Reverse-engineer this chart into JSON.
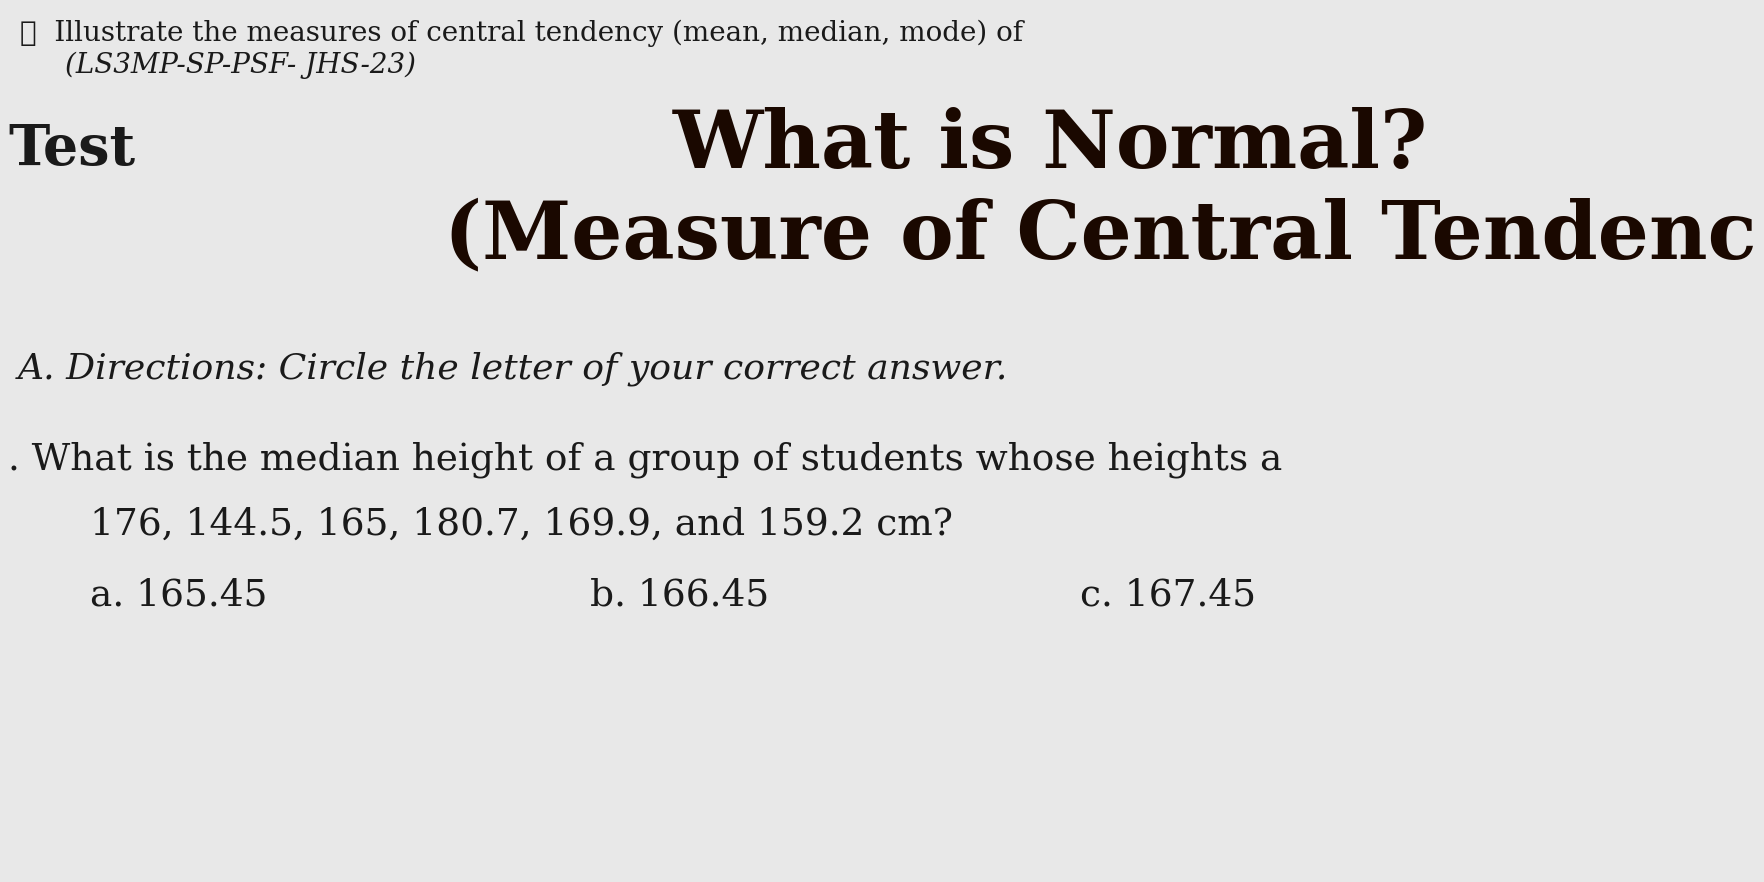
{
  "bg_color": "#e8e8e8",
  "text_color": "#1a1a1a",
  "title_color": "#1a0800",
  "bullet_line1": "❖  Illustrate the measures of central tendency (mean, median, mode) of",
  "bullet_line2": "(LS3MP-SP-PSF- JHS-23)",
  "test_label": "Test",
  "title1": "What is Normal?",
  "title2": "(Measure of Central Tendenc",
  "directions": "A. Directions: Circle the letter of your correct answer.",
  "question_line1": ". What is the median height of a group of students whose heights a",
  "question_line2": "176, 144.5, 165, 180.7, 169.9, and 159.2 cm?",
  "choice_a": "a. 165.45",
  "choice_b": "b. 166.45",
  "choice_c": "c. 167.45",
  "bullet_fontsize": 20,
  "test_fontsize": 40,
  "title_fontsize": 58,
  "directions_fontsize": 26,
  "question_fontsize": 27,
  "choice_fontsize": 27
}
